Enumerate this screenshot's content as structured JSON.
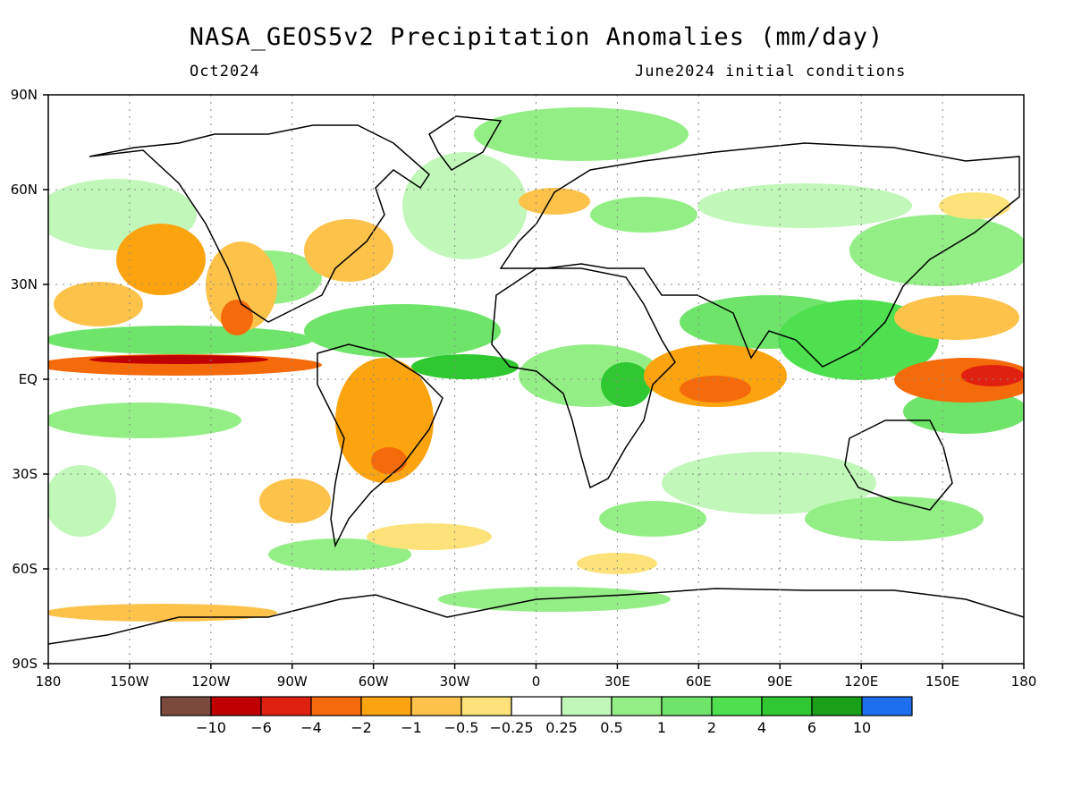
{
  "title": "NASA_GEOS5v2 Precipitation Anomalies (mm/day)",
  "subtitle_left": "Oct2024",
  "subtitle_right": "June2024 initial conditions",
  "map": {
    "lat_labels": [
      "90N",
      "60N",
      "30N",
      "EQ",
      "30S",
      "60S",
      "90S"
    ],
    "lon_labels": [
      "180",
      "150W",
      "120W",
      "90W",
      "60W",
      "30W",
      "0",
      "30E",
      "60E",
      "90E",
      "120E",
      "150E",
      "180"
    ]
  },
  "colorbar": {
    "labels": [
      "-10",
      "-6",
      "-4",
      "-2",
      "-1",
      "-0.5",
      "-0.25",
      "0.25",
      "0.5",
      "1",
      "2",
      "4",
      "6",
      "10"
    ],
    "colors": [
      "#7a4a3c",
      "#c00000",
      "#e02010",
      "#f56a0a",
      "#fca310",
      "#fdc24a",
      "#fde27a",
      "#ffffff",
      "#c2f7ba",
      "#94ee86",
      "#6fe46a",
      "#4ee04e",
      "#30c830",
      "#18a018",
      "#1e6ef0"
    ]
  },
  "features": {
    "wet_colors": [
      "#c2f7ba",
      "#94ee86",
      "#6fe46a",
      "#4ee04e",
      "#30c830",
      "#18a018"
    ],
    "dry_colors": [
      "#fde27a",
      "#fdc24a",
      "#fca310",
      "#f56a0a",
      "#e02010",
      "#c00000"
    ]
  }
}
